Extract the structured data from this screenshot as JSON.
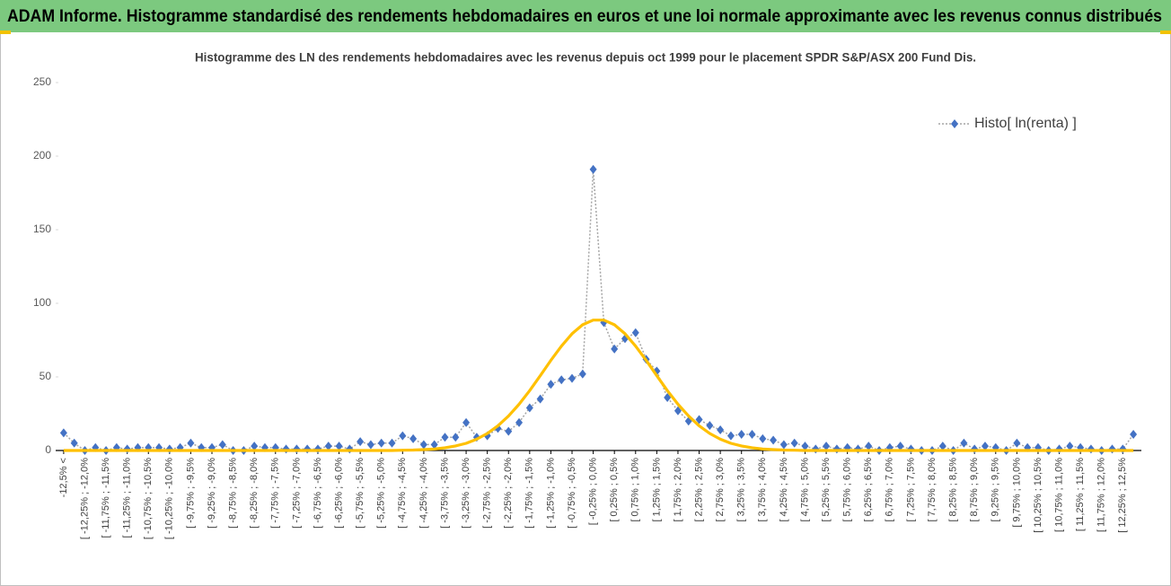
{
  "header": {
    "title": "ADAM Informe. Histogramme standardisé des rendements hebdomadaires en euros et une loi normale approximante avec les revenus connus distribués"
  },
  "chart_data": {
    "type": "line",
    "title": "Histogramme des LN des rendements hebdomadaires avec les revenus depuis oct 1999 pour le placement SPDR S&P/ASX 200 Fund Dis.",
    "categories": [
      "-12,5% <",
      null,
      "[ -12,25% ; -12,0%",
      null,
      "[ -11,75% ; -11,5%",
      null,
      "[ -11,25% ; -11,0%",
      null,
      "[ -10,75% ; -10,5%",
      null,
      "[ -10,25% ; -10,0%",
      null,
      "[ -9,75% ; -9,5%",
      null,
      "[ -9,25% ; -9,0%",
      null,
      "[ -8,75% ; -8,5%",
      null,
      "[ -8,25% ; -8,0%",
      null,
      "[ -7,75% ; -7,5%",
      null,
      "[ -7,25% ; -7,0%",
      null,
      "[ -6,75% ; -6,5%",
      null,
      "[ -6,25% ; -6,0%",
      null,
      "[ -5,75% ; -5,5%",
      null,
      "[ -5,25% ; -5,0%",
      null,
      "[ -4,75% ; -4,5%",
      null,
      "[ -4,25% ; -4,0%",
      null,
      "[ -3,75% ; -3,5%",
      null,
      "[ -3,25% ; -3,0%",
      null,
      "[ -2,75% ; -2,5%",
      null,
      "[ -2,25% ; -2,0%",
      null,
      "[ -1,75% ; -1,5%",
      null,
      "[ -1,25% ; -1,0%",
      null,
      "[ -0,75% ; -0,5%",
      null,
      "[ -0,25% ; 0,0%",
      null,
      "[ 0,25% ; 0,5%",
      null,
      "[ 0,75% ; 1,0%",
      null,
      "[ 1,25% ; 1,5%",
      null,
      "[ 1,75% ; 2,0%",
      null,
      "[ 2,25% ; 2,5%",
      null,
      "[ 2,75% ; 3,0%",
      null,
      "[ 3,25% ; 3,5%",
      null,
      "[ 3,75% ; 4,0%",
      null,
      "[ 4,25% ; 4,5%",
      null,
      "[ 4,75% ; 5,0%",
      null,
      "[ 5,25% ; 5,5%",
      null,
      "[ 5,75% ; 6,0%",
      null,
      "[ 6,25% ; 6,5%",
      null,
      "[ 6,75% ; 7,0%",
      null,
      "[ 7,25% ; 7,5%",
      null,
      "[ 7,75% ; 8,0%",
      null,
      "[ 8,25% ; 8,5%",
      null,
      "[ 8,75% ; 9,0%",
      null,
      "[ 9,25% ; 9,5%",
      null,
      "[ 9,75% ; 10,0%",
      null,
      "[ 10,25% ; 10,5%",
      null,
      "[ 10,75% ; 11,0%",
      null,
      "[ 11,25% ; 11,5%",
      null,
      "[ 11,75% ; 12,0%",
      null,
      "[ 12,25% ; 12,5%",
      null
    ],
    "series": [
      {
        "name": "Histo[ ln(renta) ]",
        "color": "#4472c4",
        "marker": "diamond",
        "line_style": "dotted",
        "line_color": "#a5a5a5",
        "values": [
          12,
          5,
          0,
          2,
          0,
          2,
          1,
          2,
          2,
          2,
          1,
          2,
          5,
          2,
          2,
          4,
          0,
          0,
          3,
          2,
          2,
          1,
          1,
          1,
          1,
          3,
          3,
          1,
          6,
          4,
          5,
          5,
          10,
          8,
          4,
          4,
          9,
          9,
          19,
          9,
          10,
          15,
          13,
          19,
          29,
          35,
          45,
          48,
          49,
          52,
          191,
          87,
          69,
          76,
          80,
          62,
          54,
          36,
          27,
          20,
          21,
          17,
          14,
          10,
          11,
          11,
          8,
          7,
          4,
          5,
          3,
          1,
          3,
          1,
          2,
          1,
          3,
          0,
          2,
          3,
          1,
          0,
          0,
          3,
          0,
          5,
          1,
          3,
          2,
          0,
          5,
          2,
          2,
          0,
          1,
          3,
          2,
          1,
          0,
          1,
          1,
          11
        ]
      },
      {
        "color": "#ffc000",
        "marker": "none",
        "line_style": "solid",
        "values": [
          0,
          0,
          0,
          0,
          0,
          0,
          0,
          0,
          0,
          0,
          0,
          0,
          0,
          0,
          0,
          0,
          0,
          0,
          0,
          0,
          0,
          0,
          0,
          0,
          0,
          0,
          0,
          0,
          0,
          0,
          0,
          0,
          0.2,
          0.3,
          0.6,
          1.0,
          1.8,
          3.1,
          4.9,
          7.7,
          11.6,
          16.8,
          23.4,
          31.4,
          40.7,
          50.8,
          61.2,
          70.9,
          79.3,
          85.4,
          88.6,
          88.6,
          85.4,
          79.3,
          70.9,
          61.2,
          50.8,
          40.7,
          31.4,
          23.4,
          16.8,
          11.6,
          7.7,
          4.9,
          3.1,
          1.8,
          1.0,
          0.6,
          0.3,
          0.2,
          0,
          0,
          0,
          0,
          0,
          0,
          0,
          0,
          0,
          0,
          0,
          0,
          0,
          0,
          0,
          0,
          0,
          0,
          0,
          0,
          0,
          0,
          0,
          0,
          0,
          0,
          0,
          0,
          0,
          0,
          0,
          0
        ]
      }
    ],
    "ylim": [
      0,
      250
    ],
    "yticks": [
      0,
      50,
      100,
      150,
      200,
      250
    ],
    "legend": "top-right"
  }
}
